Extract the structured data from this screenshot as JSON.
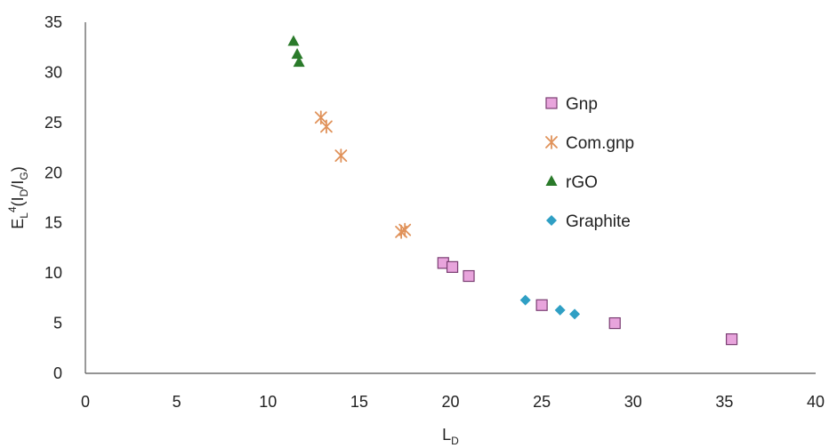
{
  "chart_data": {
    "type": "scatter",
    "title": "",
    "xlabel": {
      "main": "L",
      "sub": "D"
    },
    "ylabel": {
      "p1": "E",
      "p1_sub": "L",
      "p1_sup": "4",
      "p2": "(I",
      "p2_sub": "D",
      "p3": "/I",
      "p3_sub": "G",
      "p4": ")"
    },
    "xlim": [
      0,
      40
    ],
    "ylim": [
      0,
      35
    ],
    "xticks": [
      0,
      5,
      10,
      15,
      20,
      25,
      30,
      35,
      40
    ],
    "yticks": [
      0,
      5,
      10,
      15,
      20,
      25,
      30,
      35
    ],
    "grid": false,
    "legend_position": "right",
    "series": [
      {
        "name": "Gnp",
        "marker": "square",
        "color": "#e8a4dc",
        "stroke": "#7a3d72",
        "points": [
          [
            19.6,
            11.0
          ],
          [
            20.1,
            10.6
          ],
          [
            21.0,
            9.7
          ],
          [
            25.0,
            6.8
          ],
          [
            29.0,
            5.0
          ],
          [
            35.4,
            3.4
          ]
        ]
      },
      {
        "name": "Com.gnp",
        "marker": "asterisk",
        "color": "#e0925a",
        "points": [
          [
            12.9,
            25.5
          ],
          [
            13.2,
            24.6
          ],
          [
            14.0,
            21.7
          ],
          [
            17.3,
            14.1
          ],
          [
            17.5,
            14.3
          ]
        ]
      },
      {
        "name": "rGO",
        "marker": "triangle",
        "color": "#2a7a2a",
        "points": [
          [
            11.4,
            33.1
          ],
          [
            11.6,
            31.8
          ],
          [
            11.7,
            31.0
          ]
        ]
      },
      {
        "name": "Graphite",
        "marker": "diamond",
        "color": "#2f9fc4",
        "points": [
          [
            24.1,
            7.3
          ],
          [
            26.0,
            6.3
          ],
          [
            26.8,
            5.9
          ]
        ]
      }
    ]
  }
}
